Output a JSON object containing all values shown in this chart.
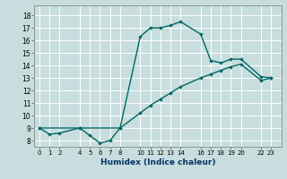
{
  "xlabel": "Humidex (Indice chaleur)",
  "ylabel": "",
  "background_color": "#c8dede",
  "grid_color": "#ffffff",
  "line_color": "#006666",
  "xlim": [
    -0.5,
    24.0
  ],
  "ylim": [
    7.5,
    18.8
  ],
  "xticks": [
    0,
    1,
    2,
    4,
    5,
    6,
    7,
    8,
    10,
    11,
    12,
    13,
    14,
    16,
    17,
    18,
    19,
    20,
    22,
    23
  ],
  "yticks": [
    8,
    9,
    10,
    11,
    12,
    13,
    14,
    15,
    16,
    17,
    18
  ],
  "line1_x": [
    0,
    1,
    2,
    4,
    5,
    6,
    7,
    8,
    10,
    11,
    12,
    13,
    14,
    16,
    17,
    18,
    19,
    20,
    22,
    23
  ],
  "line1_y": [
    9.0,
    8.5,
    8.6,
    9.0,
    8.4,
    7.8,
    8.0,
    9.0,
    16.3,
    17.0,
    17.0,
    17.2,
    17.5,
    16.5,
    14.4,
    14.2,
    14.5,
    14.5,
    13.1,
    13.0
  ],
  "line2_x": [
    0,
    4,
    8,
    10,
    11,
    12,
    13,
    14,
    16,
    17,
    18,
    19,
    20,
    22,
    23
  ],
  "line2_y": [
    9.0,
    9.0,
    9.0,
    10.2,
    10.8,
    11.3,
    11.8,
    12.3,
    13.0,
    13.3,
    13.6,
    13.9,
    14.1,
    12.8,
    13.0
  ]
}
